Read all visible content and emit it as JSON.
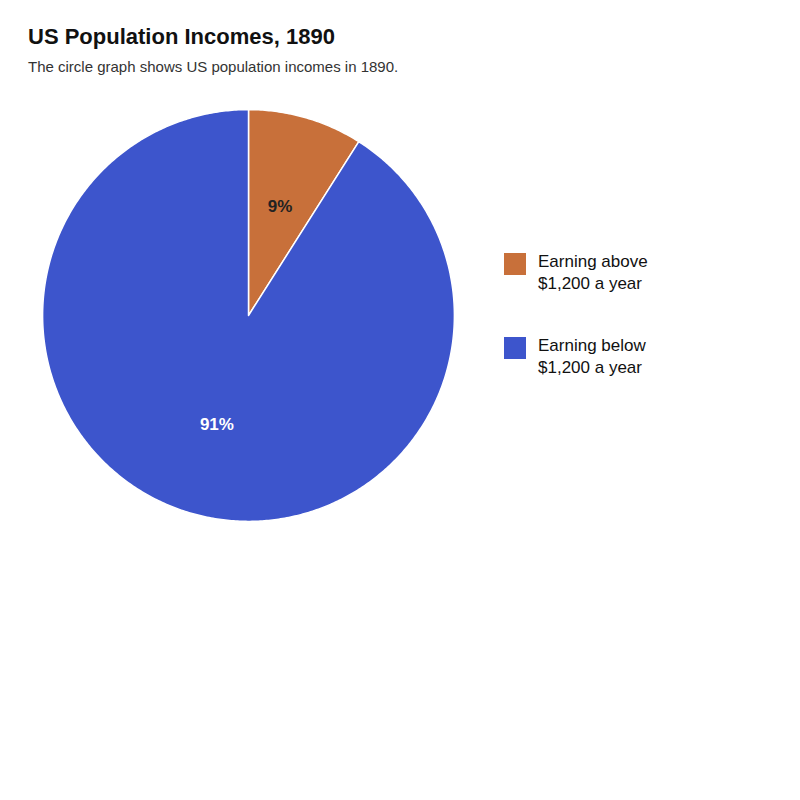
{
  "chart_data": {
    "type": "pie",
    "title": "US Population Incomes, 1890",
    "subtitle": "The circle graph shows US population incomes in 1890.",
    "categories": [
      "Earning above\n$1,200 a year",
      "Earning below\n$1,200 a year"
    ],
    "values": [
      9,
      91
    ],
    "value_labels": [
      "9%",
      "91%"
    ],
    "colors": [
      "#C8703A",
      "#3D55CC"
    ],
    "data_labels": true,
    "legend": "right"
  }
}
